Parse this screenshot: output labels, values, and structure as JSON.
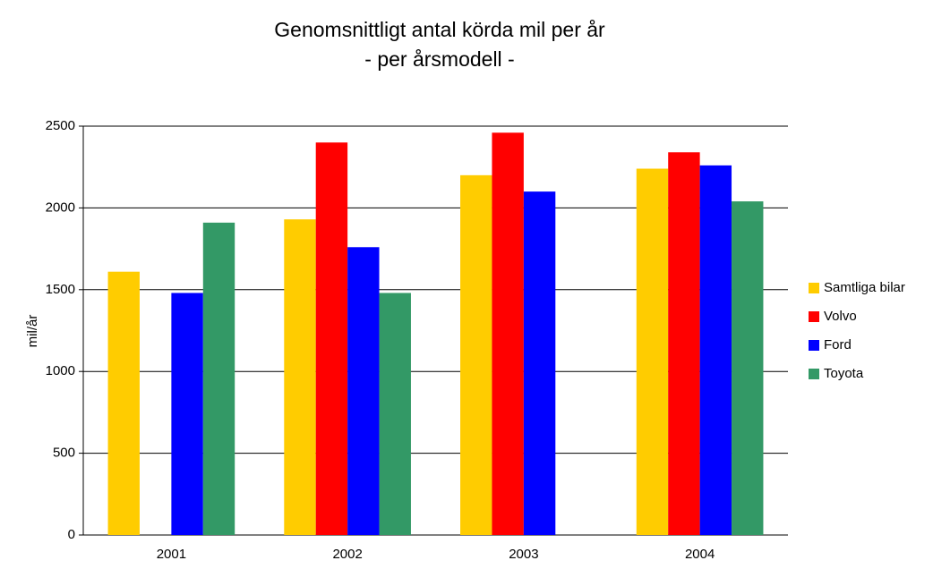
{
  "chart_data": {
    "type": "bar",
    "title": "Genomsnittligt antal körda mil per år",
    "subtitle": "- per årsmodell -",
    "y_label": "mil/år",
    "categories": [
      "2001",
      "2002",
      "2003",
      "2004"
    ],
    "series": [
      {
        "name": "Samtliga bilar",
        "color": "#ffcc00",
        "values": [
          1610,
          1930,
          2200,
          2240
        ]
      },
      {
        "name": "Volvo",
        "color": "#ff0000",
        "values": [
          null,
          2400,
          2460,
          2340
        ]
      },
      {
        "name": "Ford",
        "color": "#0000ff",
        "values": [
          1480,
          1760,
          2100,
          2260
        ]
      },
      {
        "name": "Toyota",
        "color": "#339966",
        "values": [
          1910,
          1480,
          null,
          2040
        ]
      }
    ],
    "ylim": [
      0,
      2500
    ],
    "yticks": [
      0,
      500,
      1000,
      1500,
      2000,
      2500
    ],
    "grid": true,
    "legend": "right"
  }
}
